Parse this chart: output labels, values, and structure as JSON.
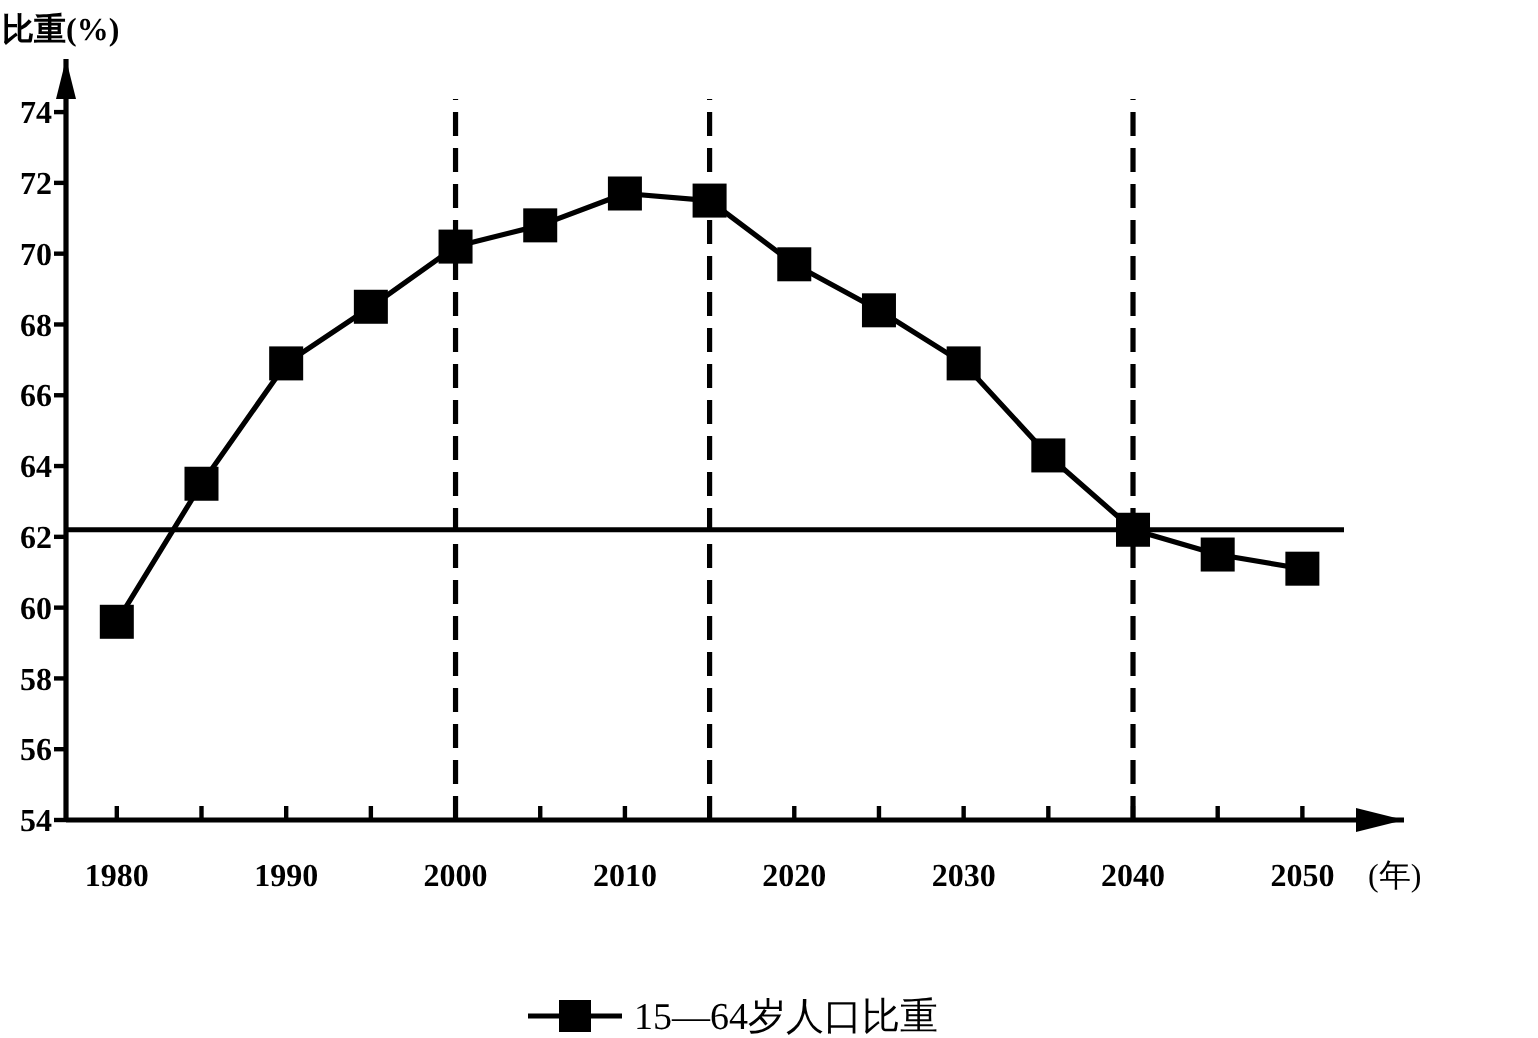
{
  "chart_data": {
    "type": "line",
    "ylabel": "比重(%)",
    "xlabel": "(年)",
    "x": [
      1980,
      1985,
      1990,
      1995,
      2000,
      2005,
      2010,
      2015,
      2020,
      2025,
      2030,
      2035,
      2040,
      2045,
      2050
    ],
    "series": [
      {
        "name": "15—64岁人口比重",
        "color": "#000000",
        "values": [
          59.6,
          63.5,
          66.9,
          68.5,
          70.2,
          70.8,
          71.7,
          71.5,
          69.7,
          68.4,
          66.9,
          64.3,
          62.2,
          61.5,
          61.1
        ]
      }
    ],
    "xlim": [
      1977,
      2056
    ],
    "xticks": [
      1980,
      {
        "value": 1985,
        "label": null
      },
      1990,
      {
        "value": 1995,
        "label": null
      },
      2000,
      {
        "value": 2005,
        "label": null
      },
      2010,
      {
        "value": 2015,
        "label": null
      },
      2020,
      {
        "value": 2025,
        "label": null
      },
      2030,
      {
        "value": 2035,
        "label": null
      },
      2040,
      {
        "value": 2045,
        "label": null
      },
      2050
    ],
    "ylim": [
      54,
      75.5
    ],
    "yticks": [
      54,
      56,
      58,
      60,
      62,
      64,
      66,
      68,
      70,
      72,
      74
    ],
    "ref_lines": [
      {
        "axis": "y",
        "value": 62.2,
        "color": "#000000",
        "line_style": "solid"
      },
      {
        "axis": "x",
        "value": 2000,
        "color": "#000000",
        "line_style": "dashed"
      },
      {
        "axis": "x",
        "value": 2015,
        "color": "#000000",
        "line_style": "dashed"
      },
      {
        "axis": "x",
        "value": 2040,
        "color": "#000000",
        "line_style": "dashed"
      }
    ],
    "marker": "square",
    "line_style": "solid",
    "legend": "bottom",
    "grid": false
  }
}
